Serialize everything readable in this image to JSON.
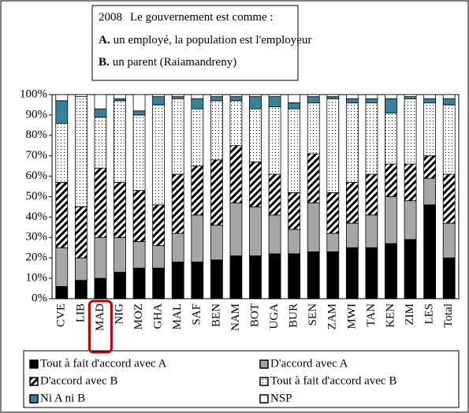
{
  "chart_data": {
    "type": "stacked_bar",
    "title": {
      "year": "2008",
      "text": "Le gouvernement est comme :",
      "option_a": {
        "letter": "A.",
        "text": "un employé, la population est l'employeur"
      },
      "option_b": {
        "letter": "B.",
        "text": "un parent (Raiamandreny)"
      }
    },
    "categories": [
      "CVE",
      "LIB",
      "MAD",
      "NIG",
      "MOZ",
      "GHA",
      "MAL",
      "SAF",
      "BEN",
      "NAM",
      "BOT",
      "UGA",
      "BUR",
      "SEN",
      "ZAM",
      "MWI",
      "TAN",
      "KEN",
      "ZIM",
      "LES",
      "Total"
    ],
    "highlight_index": 2,
    "series": [
      {
        "name": "Tout à fait d'accord avec A",
        "color": "#000000",
        "pattern": "solid",
        "values": [
          6,
          9,
          10,
          13,
          15,
          15,
          18,
          18,
          19,
          21,
          21,
          22,
          22,
          23,
          23,
          25,
          25,
          27,
          29,
          46,
          20
        ]
      },
      {
        "name": "D'accord avec A",
        "color": "#a6a6a6",
        "pattern": "solid",
        "values": [
          19,
          11,
          20,
          17,
          13,
          11,
          14,
          23,
          17,
          26,
          24,
          19,
          12,
          24,
          9,
          12,
          16,
          23,
          19,
          13,
          17
        ]
      },
      {
        "name": "D'accord avec B",
        "color": "#000000",
        "pattern": "hatch",
        "values": [
          32,
          25,
          34,
          27,
          25,
          20,
          29,
          24,
          32,
          28,
          22,
          20,
          18,
          24,
          20,
          20,
          20,
          16,
          18,
          11,
          24
        ]
      },
      {
        "name": "Tout à fait d'accord avec B",
        "color": "#000000",
        "pattern": "dots",
        "values": [
          29,
          54,
          25,
          40,
          37,
          49,
          37,
          28,
          29,
          22,
          26,
          33,
          41,
          25,
          46,
          39,
          35,
          25,
          32,
          26,
          34
        ]
      },
      {
        "name": "Ni A ni B",
        "color": "#31849b",
        "pattern": "solid",
        "values": [
          11,
          0,
          4,
          1,
          2,
          4,
          1,
          5,
          2,
          2,
          6,
          5,
          3,
          3,
          1,
          2,
          2,
          7,
          1,
          2,
          3
        ]
      },
      {
        "name": "NSP",
        "color": "#ffffff",
        "pattern": "solid",
        "values": [
          3,
          1,
          7,
          2,
          8,
          1,
          1,
          2,
          1,
          1,
          1,
          1,
          4,
          1,
          1,
          2,
          2,
          2,
          1,
          2,
          2
        ]
      }
    ],
    "ylim": [
      0,
      100
    ],
    "yticks": [
      {
        "value": 0,
        "label": "0%"
      },
      {
        "value": 10,
        "label": "10%"
      },
      {
        "value": 20,
        "label": "20%"
      },
      {
        "value": 30,
        "label": "30%"
      },
      {
        "value": 40,
        "label": "40%"
      },
      {
        "value": 50,
        "label": "50%"
      },
      {
        "value": 60,
        "label": "60%"
      },
      {
        "value": 70,
        "label": "70%"
      },
      {
        "value": 80,
        "label": "80%"
      },
      {
        "value": 90,
        "label": "90%"
      },
      {
        "value": 100,
        "label": "100%"
      }
    ],
    "legend": "bottom"
  }
}
